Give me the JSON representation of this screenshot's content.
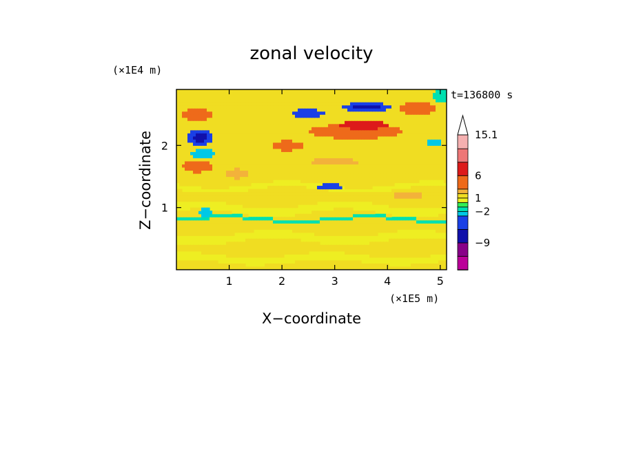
{
  "chart_data": {
    "type": "heatmap",
    "title": "zonal velocity",
    "xlabel": "X−coordinate",
    "ylabel": "Z−coordinate",
    "x_multiplier": "(×1E5 m)",
    "y_multiplier": "(×1E4 m)",
    "time_label": "t=136800 s",
    "xlim": [
      0,
      5.12
    ],
    "ylim": [
      0,
      2.9
    ],
    "x_ticks": [
      1,
      2,
      3,
      4,
      5
    ],
    "y_ticks": [
      1,
      2
    ],
    "grid": false,
    "legend": "right",
    "colorbar": {
      "levels": [
        -15,
        -12,
        -9,
        -6,
        -3,
        -2,
        -1,
        0,
        1,
        2,
        3,
        6,
        9,
        12,
        15.1
      ],
      "labels": [
        "15.1",
        "6",
        "1",
        "−2",
        "−9"
      ],
      "label_values": [
        15.1,
        6,
        1,
        -2,
        -9
      ],
      "colors": [
        "#ee00aa",
        "#bb0099",
        "#880088",
        "#1010aa",
        "#1a40e6",
        "#00c8e6",
        "#00e0b0",
        "#33ee55",
        "#eeee22",
        "#f0dd22",
        "#f3b23a",
        "#ee6a1a",
        "#dd1a1a",
        "#ee7777",
        "#f5b0b0"
      ],
      "extend_max": true
    },
    "field": {
      "background": "#eeee22",
      "bands": [
        {
          "z": 0.18,
          "amp": 0.05,
          "thick": 0.12,
          "value": 0.5
        },
        {
          "z": 0.52,
          "amp": 0.06,
          "thick": 0.13,
          "value": 0.5
        },
        {
          "z": 0.98,
          "amp": 0.07,
          "thick": 0.14,
          "value": 0.5
        },
        {
          "z": 1.33,
          "amp": 0.06,
          "thick": 0.09,
          "value": 0.5
        },
        {
          "z": 0.82,
          "amp": 0.04,
          "thick": 0.05,
          "value": -1.5
        }
      ],
      "blobs": [
        {
          "x": 0.45,
          "z": 2.13,
          "rx": 0.25,
          "rz": 0.13,
          "value": -4
        },
        {
          "x": 0.45,
          "z": 2.13,
          "rx": 0.14,
          "rz": 0.07,
          "value": -8
        },
        {
          "x": 0.4,
          "z": 2.5,
          "rx": 0.3,
          "rz": 0.1,
          "value": 4
        },
        {
          "x": 0.4,
          "z": 1.67,
          "rx": 0.3,
          "rz": 0.1,
          "value": 3.5
        },
        {
          "x": 0.5,
          "z": 1.87,
          "rx": 0.25,
          "rz": 0.07,
          "value": -3
        },
        {
          "x": 3.4,
          "z": 2.23,
          "rx": 0.9,
          "rz": 0.12,
          "value": 4
        },
        {
          "x": 3.55,
          "z": 2.33,
          "rx": 0.45,
          "rz": 0.07,
          "value": 6.5
        },
        {
          "x": 3.6,
          "z": 2.62,
          "rx": 0.45,
          "rz": 0.08,
          "value": -4
        },
        {
          "x": 3.6,
          "z": 2.62,
          "rx": 0.25,
          "rz": 0.045,
          "value": -8
        },
        {
          "x": 2.5,
          "z": 2.52,
          "rx": 0.3,
          "rz": 0.07,
          "value": -5
        },
        {
          "x": 4.55,
          "z": 2.6,
          "rx": 0.35,
          "rz": 0.1,
          "value": 4
        },
        {
          "x": 2.1,
          "z": 2.0,
          "rx": 0.3,
          "rz": 0.08,
          "value": 3.2
        },
        {
          "x": 3.0,
          "z": 1.74,
          "rx": 0.45,
          "rz": 0.06,
          "value": 2.5
        },
        {
          "x": 2.9,
          "z": 1.34,
          "rx": 0.22,
          "rz": 0.05,
          "value": -4
        },
        {
          "x": 1.15,
          "z": 1.55,
          "rx": 0.2,
          "rz": 0.08,
          "value": 2.5
        },
        {
          "x": 0.55,
          "z": 0.92,
          "rx": 0.12,
          "rz": 0.08,
          "value": -3
        },
        {
          "x": 4.4,
          "z": 1.2,
          "rx": 0.3,
          "rz": 0.06,
          "value": 2.5
        },
        {
          "x": 4.9,
          "z": 2.05,
          "rx": 0.15,
          "rz": 0.07,
          "value": -3
        },
        {
          "x": 5.0,
          "z": 2.8,
          "rx": 0.15,
          "rz": 0.1,
          "value": -2
        }
      ]
    }
  }
}
